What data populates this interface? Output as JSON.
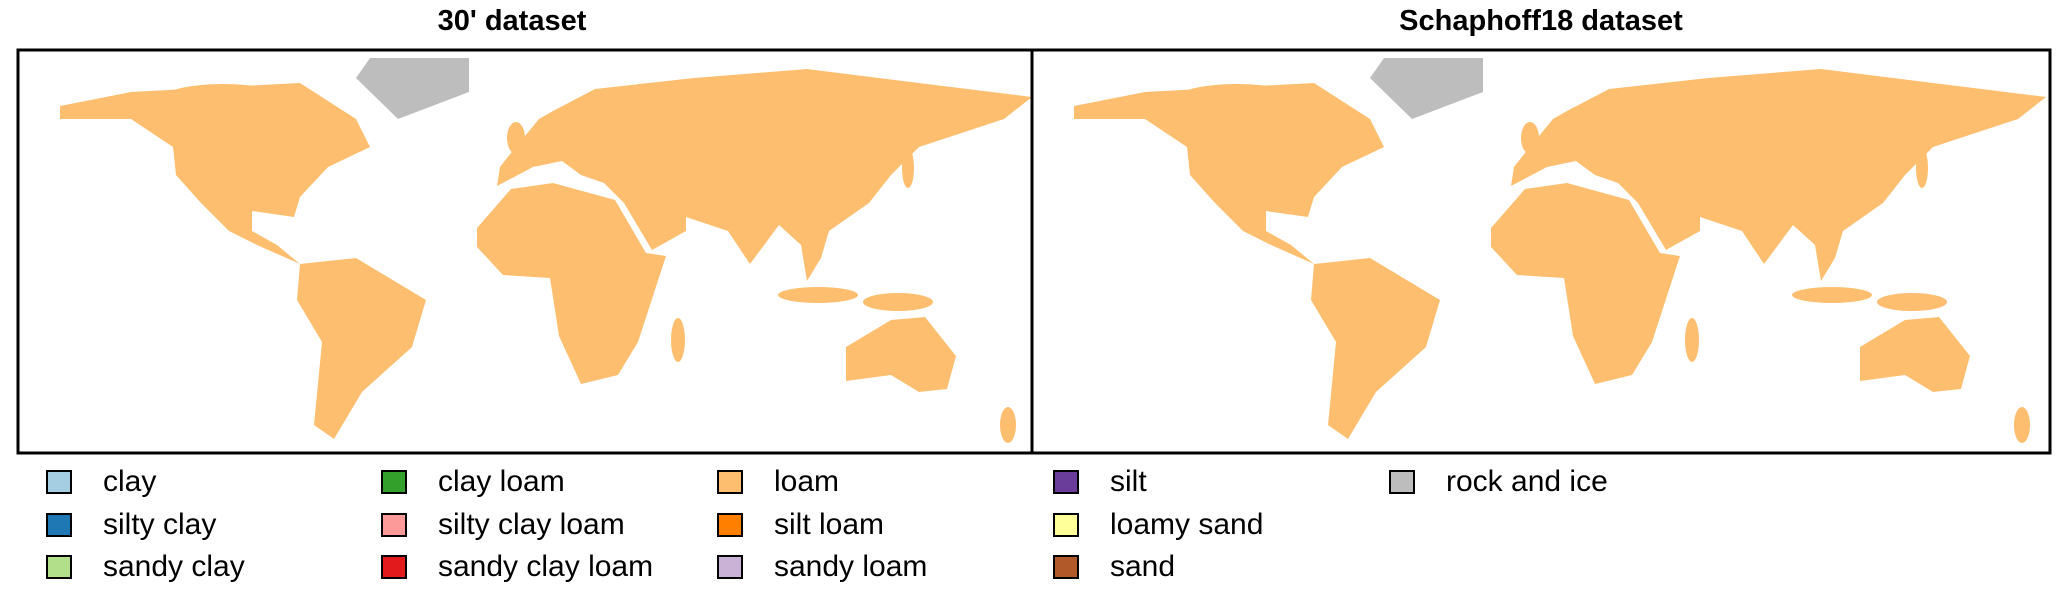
{
  "panels": [
    {
      "title": "30' dataset"
    },
    {
      "title": "Schaphoff18 dataset"
    }
  ],
  "legend": {
    "items": [
      {
        "label": "clay",
        "color": "#a6cee3"
      },
      {
        "label": "silty clay",
        "color": "#1f78b4"
      },
      {
        "label": "sandy clay",
        "color": "#b2df8a"
      },
      {
        "label": "clay loam",
        "color": "#33a02c"
      },
      {
        "label": "silty clay loam",
        "color": "#fb9a99"
      },
      {
        "label": "sandy clay loam",
        "color": "#e31a1c"
      },
      {
        "label": "loam",
        "color": "#fdbf6f"
      },
      {
        "label": "silt loam",
        "color": "#ff7f00"
      },
      {
        "label": "sandy loam",
        "color": "#cab2d6"
      },
      {
        "label": "silt",
        "color": "#6a3d9a"
      },
      {
        "label": "loamy sand",
        "color": "#ffff99"
      },
      {
        "label": "sand",
        "color": "#b15928"
      },
      {
        "label": "rock and ice",
        "color": "#bdbdbd"
      }
    ]
  }
}
